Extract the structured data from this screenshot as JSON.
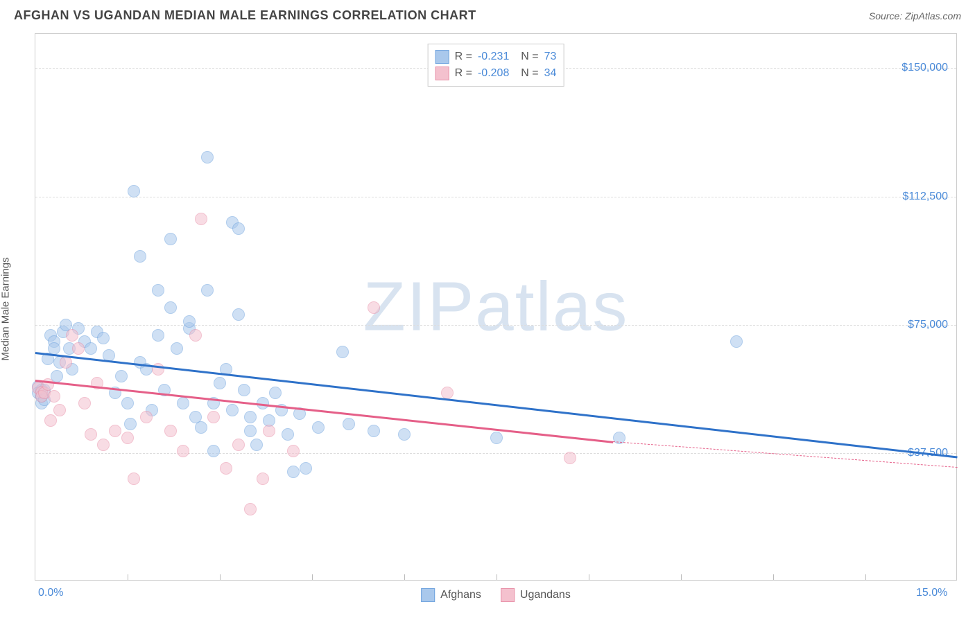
{
  "title": "AFGHAN VS UGANDAN MEDIAN MALE EARNINGS CORRELATION CHART",
  "source": "Source: ZipAtlas.com",
  "watermark": "ZIPatlas",
  "chart": {
    "type": "scatter",
    "ylabel": "Median Male Earnings",
    "xlim": [
      0,
      15
    ],
    "ylim": [
      0,
      160000
    ],
    "xticks_labels": [
      {
        "x": 0,
        "label": "0.0%"
      },
      {
        "x": 15,
        "label": "15.0%"
      }
    ],
    "xticks_minor": [
      1.5,
      3.0,
      4.5,
      6.0,
      7.5,
      9.0,
      10.5,
      12.0,
      13.5
    ],
    "yticks": [
      {
        "y": 37500,
        "label": "$37,500"
      },
      {
        "y": 75000,
        "label": "$75,000"
      },
      {
        "y": 112500,
        "label": "$112,500"
      },
      {
        "y": 150000,
        "label": "$150,000"
      }
    ],
    "background_color": "#ffffff",
    "grid_color": "#dddddd",
    "marker_radius": 9,
    "marker_opacity": 0.55,
    "series": [
      {
        "name": "Afghans",
        "color_fill": "#a9c8ec",
        "color_stroke": "#6fa3de",
        "trend_color": "#2f72c9",
        "trend_width": 2.5,
        "R": "-0.231",
        "N": "73",
        "trend": {
          "x1": 0,
          "y1": 67000,
          "x2": 15,
          "y2": 36500
        },
        "points": [
          [
            0.05,
            57000
          ],
          [
            0.05,
            55000
          ],
          [
            0.1,
            56000
          ],
          [
            0.1,
            54000
          ],
          [
            0.1,
            52000
          ],
          [
            0.15,
            56000
          ],
          [
            0.15,
            53000
          ],
          [
            0.2,
            65000
          ],
          [
            0.25,
            72000
          ],
          [
            0.3,
            70000
          ],
          [
            0.3,
            68000
          ],
          [
            0.35,
            60000
          ],
          [
            0.4,
            64000
          ],
          [
            0.45,
            73000
          ],
          [
            0.5,
            75000
          ],
          [
            0.55,
            68000
          ],
          [
            0.6,
            62000
          ],
          [
            0.7,
            74000
          ],
          [
            0.8,
            70000
          ],
          [
            0.9,
            68000
          ],
          [
            1.0,
            73000
          ],
          [
            1.1,
            71000
          ],
          [
            1.2,
            66000
          ],
          [
            1.3,
            55000
          ],
          [
            1.4,
            60000
          ],
          [
            1.5,
            52000
          ],
          [
            1.55,
            46000
          ],
          [
            1.6,
            114000
          ],
          [
            1.7,
            95000
          ],
          [
            1.7,
            64000
          ],
          [
            1.8,
            62000
          ],
          [
            1.9,
            50000
          ],
          [
            2.0,
            85000
          ],
          [
            2.0,
            72000
          ],
          [
            2.1,
            56000
          ],
          [
            2.2,
            100000
          ],
          [
            2.2,
            80000
          ],
          [
            2.3,
            68000
          ],
          [
            2.4,
            52000
          ],
          [
            2.5,
            74000
          ],
          [
            2.5,
            76000
          ],
          [
            2.6,
            48000
          ],
          [
            2.7,
            45000
          ],
          [
            2.8,
            85000
          ],
          [
            2.8,
            124000
          ],
          [
            2.9,
            52000
          ],
          [
            2.9,
            38000
          ],
          [
            3.0,
            58000
          ],
          [
            3.1,
            62000
          ],
          [
            3.2,
            105000
          ],
          [
            3.2,
            50000
          ],
          [
            3.3,
            78000
          ],
          [
            3.3,
            103000
          ],
          [
            3.4,
            56000
          ],
          [
            3.5,
            44000
          ],
          [
            3.5,
            48000
          ],
          [
            3.6,
            40000
          ],
          [
            3.7,
            52000
          ],
          [
            3.8,
            47000
          ],
          [
            3.9,
            55000
          ],
          [
            4.0,
            50000
          ],
          [
            4.1,
            43000
          ],
          [
            4.2,
            32000
          ],
          [
            4.3,
            49000
          ],
          [
            4.4,
            33000
          ],
          [
            4.6,
            45000
          ],
          [
            5.0,
            67000
          ],
          [
            5.1,
            46000
          ],
          [
            5.5,
            44000
          ],
          [
            6.0,
            43000
          ],
          [
            7.5,
            42000
          ],
          [
            9.5,
            42000
          ],
          [
            11.4,
            70000
          ]
        ]
      },
      {
        "name": "Ugandans",
        "color_fill": "#f4c1ce",
        "color_stroke": "#e890a8",
        "trend_color": "#e55f88",
        "trend_width": 2.5,
        "R": "-0.208",
        "N": "34",
        "trend": {
          "x1": 0,
          "y1": 59000,
          "x2": 9.4,
          "y2": 41000,
          "x3": 15,
          "y3": 33500
        },
        "points": [
          [
            0.05,
            56500
          ],
          [
            0.1,
            55200
          ],
          [
            0.1,
            54000
          ],
          [
            0.15,
            55000
          ],
          [
            0.2,
            57500
          ],
          [
            0.25,
            47000
          ],
          [
            0.3,
            54000
          ],
          [
            0.4,
            50000
          ],
          [
            0.5,
            64000
          ],
          [
            0.6,
            72000
          ],
          [
            0.7,
            68000
          ],
          [
            0.8,
            52000
          ],
          [
            0.9,
            43000
          ],
          [
            1.0,
            58000
          ],
          [
            1.1,
            40000
          ],
          [
            1.3,
            44000
          ],
          [
            1.5,
            42000
          ],
          [
            1.6,
            30000
          ],
          [
            1.8,
            48000
          ],
          [
            2.0,
            62000
          ],
          [
            2.2,
            44000
          ],
          [
            2.4,
            38000
          ],
          [
            2.6,
            72000
          ],
          [
            2.7,
            106000
          ],
          [
            2.9,
            48000
          ],
          [
            3.1,
            33000
          ],
          [
            3.3,
            40000
          ],
          [
            3.5,
            21000
          ],
          [
            3.7,
            30000
          ],
          [
            3.8,
            44000
          ],
          [
            4.2,
            38000
          ],
          [
            5.5,
            80000
          ],
          [
            6.7,
            55000
          ],
          [
            8.7,
            36000
          ]
        ]
      }
    ]
  }
}
